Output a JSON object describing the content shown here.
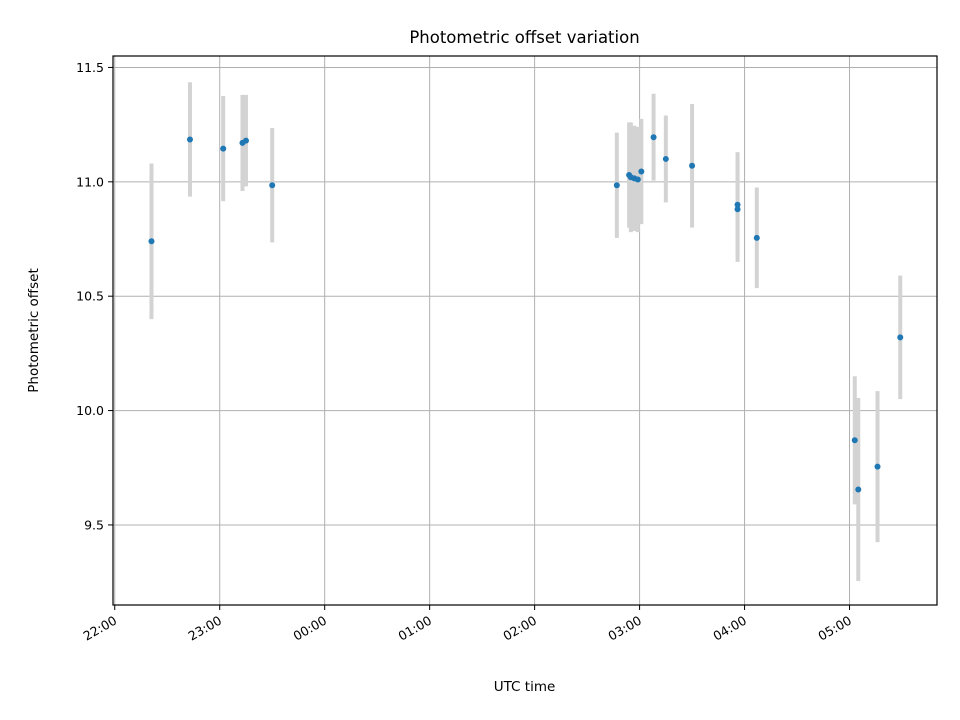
{
  "chart_data": {
    "type": "scatter",
    "title": "Photometric offset variation",
    "xlabel": "UTC time",
    "ylabel": "Photometric offset",
    "grid": true,
    "xlim": [
      "21:59",
      "05:50"
    ],
    "ylim": [
      9.15,
      11.55
    ],
    "xticks": [
      "22:00",
      "23:00",
      "00:00",
      "01:00",
      "02:00",
      "03:00",
      "04:00",
      "05:00"
    ],
    "yticks": [
      9.5,
      10.0,
      10.5,
      11.0,
      11.5
    ],
    "ytick_labels": [
      "9.5",
      "10.0",
      "10.5",
      "11.0",
      "11.5"
    ],
    "marker_color": "#1f77b4",
    "errorbar_color": "#d3d3d3",
    "series": [
      {
        "points": [
          {
            "x": "22:21",
            "y": 10.74,
            "err": 0.34
          },
          {
            "x": "22:43",
            "y": 11.185,
            "err": 0.25
          },
          {
            "x": "23:02",
            "y": 11.145,
            "err": 0.23
          },
          {
            "x": "23:13",
            "y": 11.17,
            "err": 0.21
          },
          {
            "x": "23:15",
            "y": 11.18,
            "err": 0.2
          },
          {
            "x": "23:30",
            "y": 10.985,
            "err": 0.25
          },
          {
            "x": "02:47",
            "y": 10.985,
            "err": 0.23
          },
          {
            "x": "02:54",
            "y": 11.03,
            "err": 0.23
          },
          {
            "x": "02:55",
            "y": 11.02,
            "err": 0.24
          },
          {
            "x": "02:57",
            "y": 11.015,
            "err": 0.23
          },
          {
            "x": "02:59",
            "y": 11.01,
            "err": 0.23
          },
          {
            "x": "03:01",
            "y": 11.045,
            "err": 0.23
          },
          {
            "x": "03:08",
            "y": 11.195,
            "err": 0.19
          },
          {
            "x": "03:15",
            "y": 11.1,
            "err": 0.19
          },
          {
            "x": "03:30",
            "y": 11.07,
            "err": 0.27
          },
          {
            "x": "03:56",
            "y": 10.9,
            "err": 0.23
          },
          {
            "x": "03:56",
            "y": 10.88,
            "err": 0.23
          },
          {
            "x": "04:07",
            "y": 10.755,
            "err": 0.22
          },
          {
            "x": "05:03",
            "y": 9.87,
            "err": 0.28
          },
          {
            "x": "05:05",
            "y": 9.655,
            "err": 0.4
          },
          {
            "x": "05:16",
            "y": 9.755,
            "err": 0.33
          },
          {
            "x": "05:29",
            "y": 10.32,
            "err": 0.27
          }
        ]
      }
    ]
  }
}
